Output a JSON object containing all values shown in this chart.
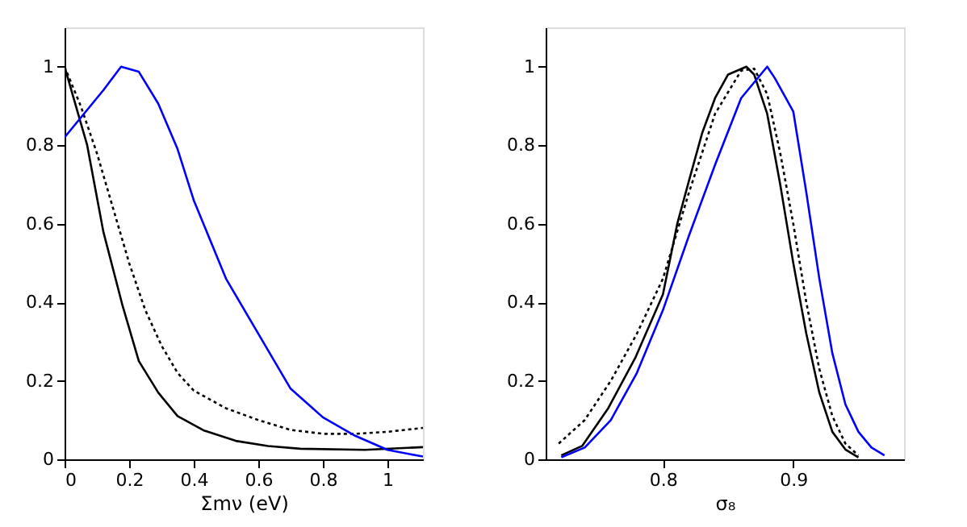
{
  "chart_data": [
    {
      "type": "line",
      "xlabel": "Σmν (eV)",
      "xlim": [
        0,
        1.11
      ],
      "xticks": [
        0,
        0.2,
        0.4,
        0.6,
        0.8,
        1
      ],
      "ylim": [
        0,
        1.1
      ],
      "yticks": [
        0,
        0.2,
        0.4,
        0.6,
        0.8,
        1
      ],
      "grid": false,
      "marker": "none",
      "series": [
        {
          "color": "#000000",
          "line_style": "solid",
          "x": [
            0,
            0.07,
            0.12,
            0.18,
            0.23,
            0.29,
            0.35,
            0.43,
            0.53,
            0.63,
            0.73,
            0.93,
            1.11
          ],
          "values": [
            1,
            0.8,
            0.58,
            0.39,
            0.25,
            0.17,
            0.11,
            0.074,
            0.047,
            0.034,
            0.027,
            0.024,
            0.031
          ]
        },
        {
          "color": "#000000",
          "line_style": "dotted",
          "x": [
            0,
            0.05,
            0.1,
            0.15,
            0.2,
            0.25,
            0.3,
            0.35,
            0.4,
            0.5,
            0.6,
            0.7,
            0.8,
            0.9,
            1.0,
            1.11
          ],
          "values": [
            1,
            0.9,
            0.78,
            0.64,
            0.5,
            0.38,
            0.29,
            0.22,
            0.175,
            0.13,
            0.1,
            0.075,
            0.065,
            0.065,
            0.07,
            0.08
          ]
        },
        {
          "color": "#0000ff",
          "line_style": "solid",
          "x": [
            0,
            0.12,
            0.175,
            0.23,
            0.29,
            0.35,
            0.4,
            0.5,
            0.6,
            0.7,
            0.8,
            0.9,
            1.0,
            1.11
          ],
          "values": [
            0.82,
            0.94,
            1,
            0.987,
            0.906,
            0.79,
            0.66,
            0.46,
            0.32,
            0.18,
            0.107,
            0.06,
            0.024,
            0.007
          ]
        }
      ]
    },
    {
      "type": "line",
      "xlabel": "σ₈",
      "xlim": [
        0.71,
        0.985
      ],
      "xticks": [
        0.8,
        0.9
      ],
      "ylim": [
        0,
        1.1
      ],
      "yticks": [
        0,
        0.2,
        0.4,
        0.6,
        0.8,
        1
      ],
      "grid": false,
      "marker": "none",
      "series": [
        {
          "color": "#000000",
          "line_style": "solid",
          "x": [
            0.722,
            0.738,
            0.758,
            0.779,
            0.8,
            0.811,
            0.82,
            0.83,
            0.84,
            0.85,
            0.864,
            0.87,
            0.88,
            0.89,
            0.9,
            0.91,
            0.92,
            0.93,
            0.94,
            0.95
          ],
          "values": [
            0.01,
            0.034,
            0.13,
            0.26,
            0.42,
            0.6,
            0.71,
            0.83,
            0.92,
            0.98,
            1,
            0.98,
            0.88,
            0.7,
            0.5,
            0.32,
            0.17,
            0.07,
            0.025,
            0.005
          ]
        },
        {
          "color": "#000000",
          "line_style": "dotted",
          "x": [
            0.72,
            0.74,
            0.76,
            0.78,
            0.8,
            0.82,
            0.84,
            0.86,
            0.87,
            0.88,
            0.89,
            0.9,
            0.91,
            0.92,
            0.93,
            0.94,
            0.95
          ],
          "values": [
            0.04,
            0.1,
            0.2,
            0.32,
            0.46,
            0.68,
            0.88,
            0.99,
            0.995,
            0.93,
            0.78,
            0.6,
            0.4,
            0.23,
            0.11,
            0.04,
            0.01
          ]
        },
        {
          "color": "#0000ff",
          "line_style": "solid",
          "x": [
            0.722,
            0.74,
            0.76,
            0.78,
            0.8,
            0.82,
            0.84,
            0.86,
            0.88,
            0.886,
            0.9,
            0.91,
            0.92,
            0.93,
            0.94,
            0.95,
            0.96,
            0.97
          ],
          "values": [
            0.005,
            0.03,
            0.1,
            0.22,
            0.38,
            0.57,
            0.75,
            0.92,
            1,
            0.97,
            0.886,
            0.68,
            0.46,
            0.27,
            0.14,
            0.07,
            0.03,
            0.01
          ]
        }
      ]
    }
  ]
}
